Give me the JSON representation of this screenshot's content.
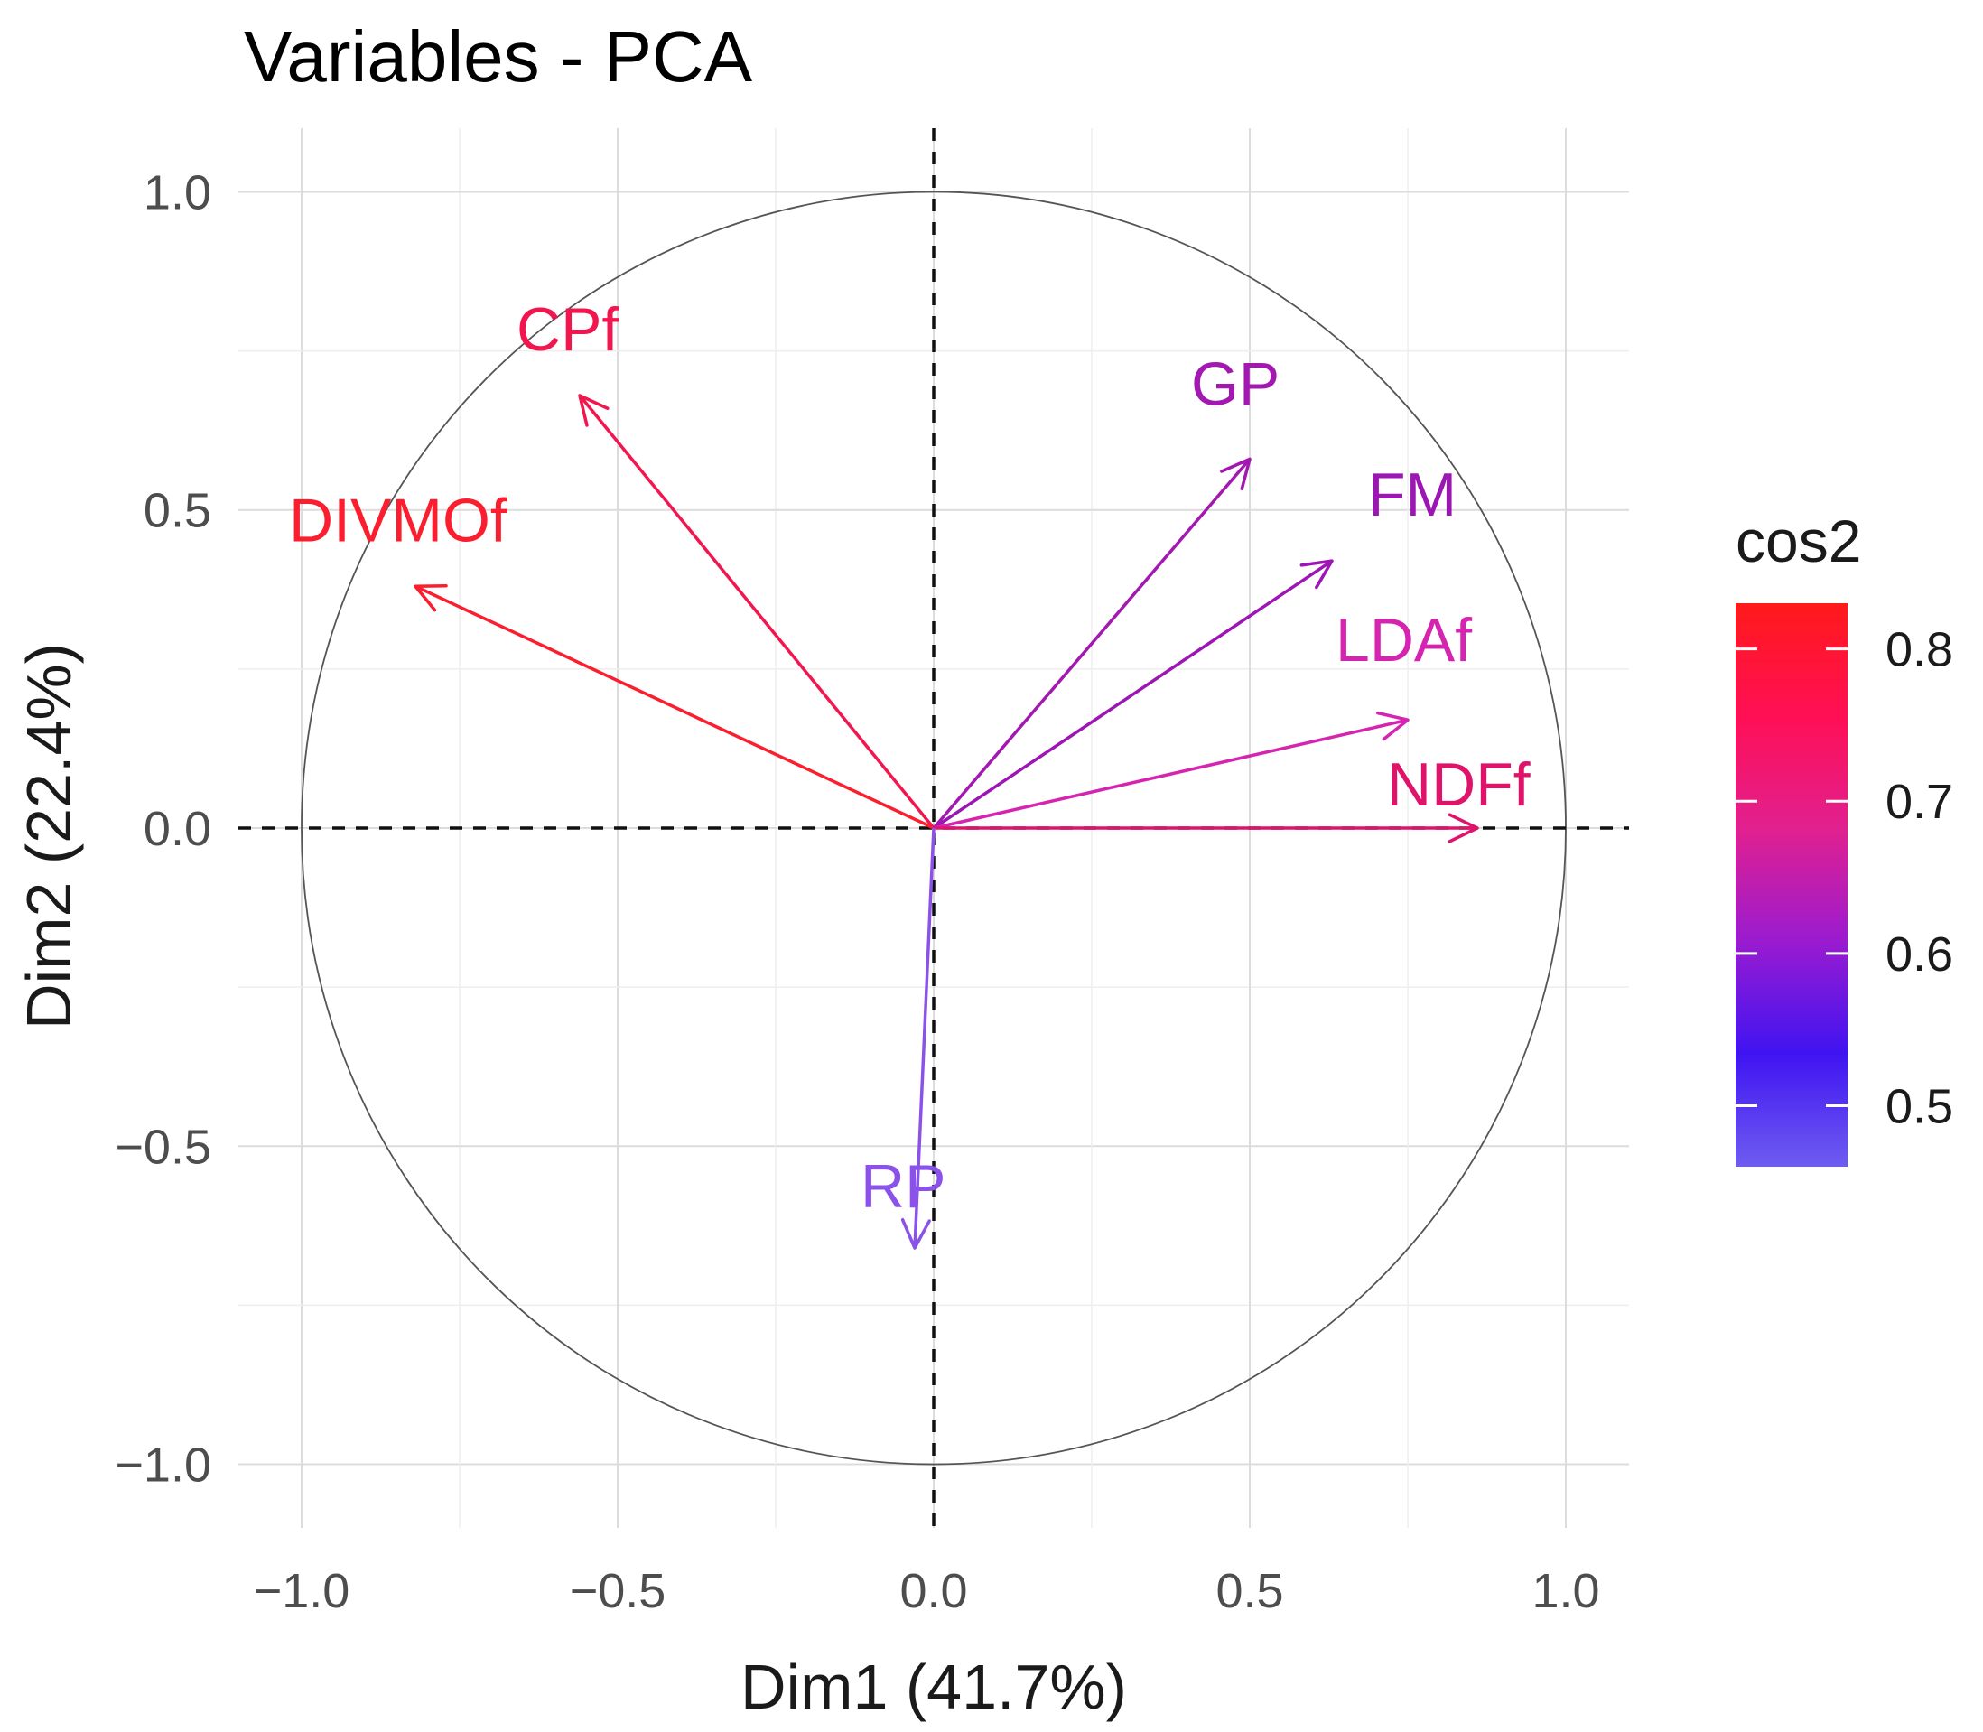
{
  "chart_data": {
    "type": "scatter",
    "title": "Variables - PCA",
    "xlabel": "Dim1 (41.7%)",
    "ylabel": "Dim2 (22.4%)",
    "xlim": [
      -1.1,
      1.1
    ],
    "ylim": [
      -1.1,
      1.1
    ],
    "x_ticks": [
      {
        "value": -1.0,
        "label": "−1.0"
      },
      {
        "value": -0.5,
        "label": "−0.5"
      },
      {
        "value": 0.0,
        "label": "0.0"
      },
      {
        "value": 0.5,
        "label": "0.5"
      },
      {
        "value": 1.0,
        "label": "1.0"
      }
    ],
    "y_ticks": [
      {
        "value": -1.0,
        "label": "−1.0"
      },
      {
        "value": -0.5,
        "label": "−0.5"
      },
      {
        "value": 0.0,
        "label": "0.0"
      },
      {
        "value": 0.5,
        "label": "0.5"
      },
      {
        "value": 1.0,
        "label": "1.0"
      }
    ],
    "grid": true,
    "variables": [
      {
        "name": "CPf",
        "x": -0.56,
        "y": 0.68,
        "cos2": 0.78,
        "color": "#f2164f"
      },
      {
        "name": "DIVMOf",
        "x": -0.82,
        "y": 0.38,
        "cos2": 0.82,
        "color": "#fb1e2e"
      },
      {
        "name": "GP",
        "x": 0.5,
        "y": 0.58,
        "cos2": 0.59,
        "color": "#a318b0"
      },
      {
        "name": "FM",
        "x": 0.63,
        "y": 0.42,
        "cos2": 0.58,
        "color": "#9c16b4"
      },
      {
        "name": "LDAf",
        "x": 0.75,
        "y": 0.17,
        "cos2": 0.64,
        "color": "#d524b0"
      },
      {
        "name": "NDFf",
        "x": 0.86,
        "y": 0.0,
        "cos2": 0.71,
        "color": "#e0136b"
      },
      {
        "name": "RP",
        "x": -0.03,
        "y": -0.66,
        "cos2": 0.49,
        "color": "#8a52e8"
      }
    ],
    "legend": {
      "title": "cos2",
      "position": "right",
      "min": 0.46,
      "max": 0.83,
      "colors": [
        "#6f5cf0",
        "#3f14f2",
        "#9a1bd0",
        "#e1208f",
        "#ff0f55",
        "#ff1a1a"
      ],
      "ticks": [
        {
          "value": 0.5,
          "label": "0.5"
        },
        {
          "value": 0.6,
          "label": "0.6"
        },
        {
          "value": 0.7,
          "label": "0.7"
        },
        {
          "value": 0.8,
          "label": "0.8"
        }
      ]
    }
  }
}
